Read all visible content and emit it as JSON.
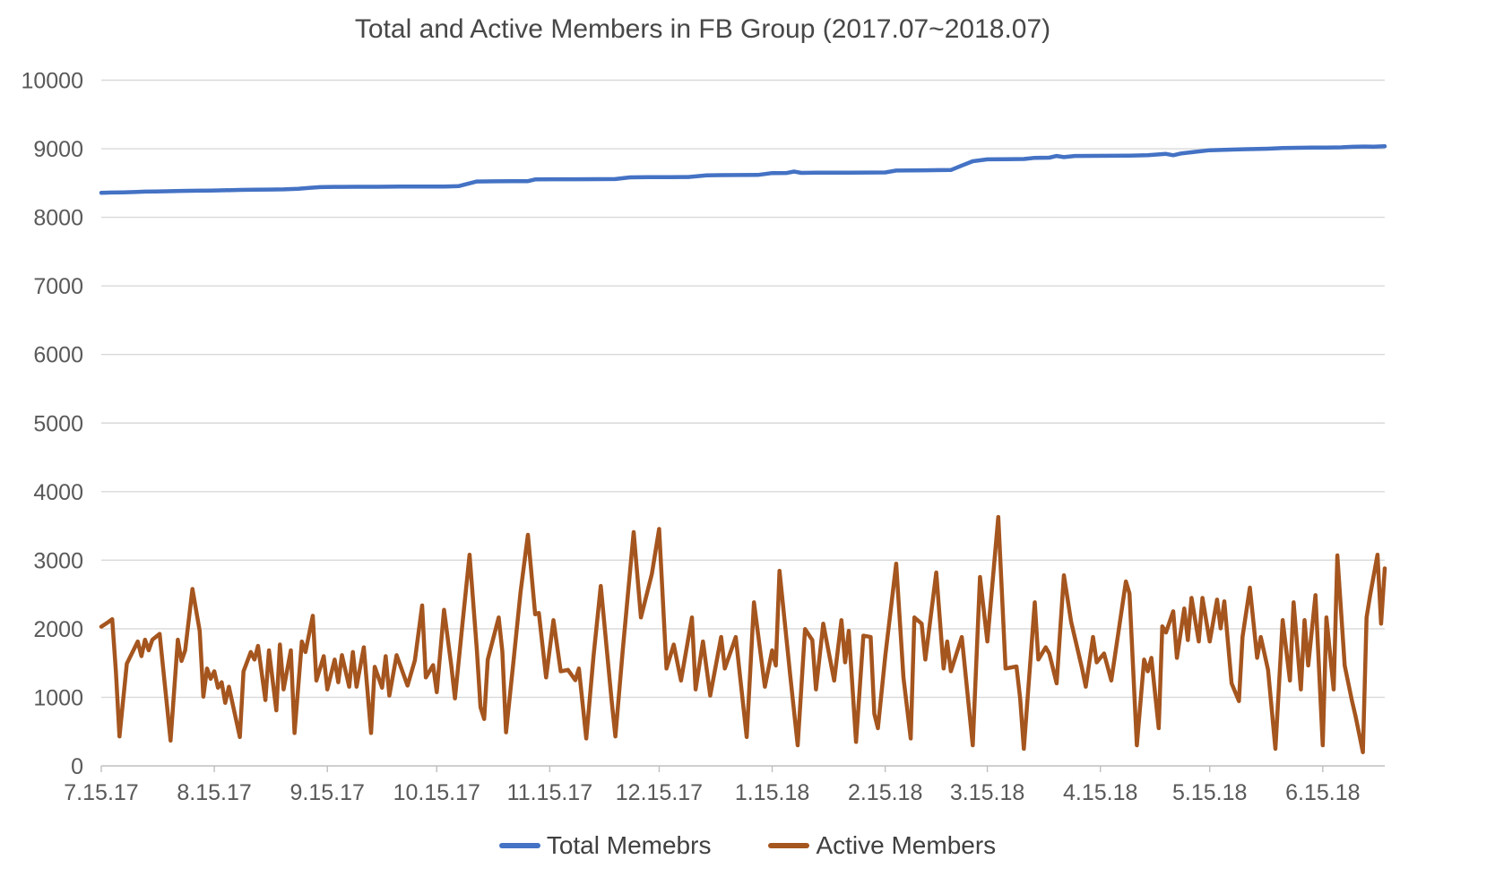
{
  "chart_data": {
    "type": "line",
    "title": "Total and Active Members in FB Group (2017.07~2018.07)",
    "xlabel": "",
    "ylabel": "",
    "grid": true,
    "legend_position": "bottom",
    "y_axis": {
      "min": 0,
      "max": 10000,
      "step": 1000,
      "tick_labels": [
        "0",
        "1000",
        "2000",
        "3000",
        "4000",
        "5000",
        "6000",
        "7000",
        "8000",
        "9000",
        "10000"
      ]
    },
    "x_axis": {
      "labels": [
        "7.15.17",
        "8.15.17",
        "9.15.17",
        "10.15.17",
        "11.15.17",
        "12.15.17",
        "1.15.18",
        "2.15.18",
        "3.15.18",
        "4.15.18",
        "5.15.18",
        "6.15.18"
      ],
      "label_days": [
        0,
        31,
        62,
        92,
        123,
        153,
        184,
        215,
        243,
        274,
        304,
        335
      ],
      "max_day": 352,
      "unit": "day"
    },
    "series": [
      {
        "name": "Total Memebrs",
        "color": "#4472C4",
        "data": [
          [
            0,
            8358
          ],
          [
            3,
            8362
          ],
          [
            6,
            8364
          ],
          [
            9,
            8368
          ],
          [
            12,
            8375
          ],
          [
            15,
            8377
          ],
          [
            18,
            8380
          ],
          [
            22,
            8385
          ],
          [
            26,
            8388
          ],
          [
            30,
            8390
          ],
          [
            34,
            8395
          ],
          [
            38,
            8400
          ],
          [
            42,
            8402
          ],
          [
            46,
            8405
          ],
          [
            50,
            8408
          ],
          [
            54,
            8415
          ],
          [
            57,
            8428
          ],
          [
            60,
            8440
          ],
          [
            64,
            8444
          ],
          [
            70,
            8446
          ],
          [
            76,
            8446
          ],
          [
            82,
            8448
          ],
          [
            88,
            8448
          ],
          [
            94,
            8450
          ],
          [
            98,
            8455
          ],
          [
            100,
            8482
          ],
          [
            103,
            8522
          ],
          [
            108,
            8525
          ],
          [
            113,
            8526
          ],
          [
            117,
            8528
          ],
          [
            119,
            8552
          ],
          [
            124,
            8555
          ],
          [
            130,
            8555
          ],
          [
            136,
            8556
          ],
          [
            141,
            8558
          ],
          [
            145,
            8582
          ],
          [
            150,
            8585
          ],
          [
            156,
            8586
          ],
          [
            161,
            8588
          ],
          [
            166,
            8612
          ],
          [
            170,
            8615
          ],
          [
            175,
            8616
          ],
          [
            180,
            8618
          ],
          [
            184,
            8645
          ],
          [
            188,
            8646
          ],
          [
            190,
            8668
          ],
          [
            192,
            8648
          ],
          [
            196,
            8650
          ],
          [
            200,
            8652
          ],
          [
            205,
            8652
          ],
          [
            210,
            8653
          ],
          [
            215,
            8655
          ],
          [
            218,
            8682
          ],
          [
            222,
            8684
          ],
          [
            226,
            8686
          ],
          [
            230,
            8688
          ],
          [
            233,
            8690
          ],
          [
            236,
            8755
          ],
          [
            239,
            8818
          ],
          [
            243,
            8845
          ],
          [
            248,
            8848
          ],
          [
            253,
            8850
          ],
          [
            256,
            8868
          ],
          [
            260,
            8870
          ],
          [
            262,
            8895
          ],
          [
            264,
            8878
          ],
          [
            267,
            8895
          ],
          [
            272,
            8896
          ],
          [
            277,
            8898
          ],
          [
            282,
            8900
          ],
          [
            287,
            8905
          ],
          [
            292,
            8925
          ],
          [
            294,
            8905
          ],
          [
            296,
            8930
          ],
          [
            300,
            8955
          ],
          [
            304,
            8978
          ],
          [
            308,
            8985
          ],
          [
            312,
            8990
          ],
          [
            316,
            8996
          ],
          [
            320,
            9000
          ],
          [
            324,
            9010
          ],
          [
            328,
            9014
          ],
          [
            332,
            9016
          ],
          [
            336,
            9018
          ],
          [
            340,
            9020
          ],
          [
            343,
            9028
          ],
          [
            346,
            9032
          ],
          [
            349,
            9030
          ],
          [
            352,
            9036
          ]
        ]
      },
      {
        "name": "Active Members",
        "color": "#A5551E",
        "data": [
          [
            0,
            2030
          ],
          [
            2,
            2100
          ],
          [
            3,
            2140
          ],
          [
            4,
            1380
          ],
          [
            5,
            430
          ],
          [
            7,
            1490
          ],
          [
            10,
            1815
          ],
          [
            11,
            1600
          ],
          [
            12,
            1840
          ],
          [
            13,
            1685
          ],
          [
            14,
            1840
          ],
          [
            16,
            1925
          ],
          [
            19,
            370
          ],
          [
            21,
            1840
          ],
          [
            22,
            1530
          ],
          [
            23,
            1685
          ],
          [
            25,
            2580
          ],
          [
            27,
            1970
          ],
          [
            28,
            1010
          ],
          [
            29,
            1420
          ],
          [
            30,
            1270
          ],
          [
            31,
            1380
          ],
          [
            32,
            1140
          ],
          [
            33,
            1220
          ],
          [
            34,
            920
          ],
          [
            35,
            1155
          ],
          [
            38,
            420
          ],
          [
            39,
            1380
          ],
          [
            41,
            1660
          ],
          [
            42,
            1550
          ],
          [
            43,
            1750
          ],
          [
            45,
            960
          ],
          [
            46,
            1685
          ],
          [
            48,
            810
          ],
          [
            49,
            1770
          ],
          [
            50,
            1115
          ],
          [
            52,
            1685
          ],
          [
            53,
            480
          ],
          [
            55,
            1815
          ],
          [
            56,
            1660
          ],
          [
            58,
            2190
          ],
          [
            59,
            1245
          ],
          [
            61,
            1600
          ],
          [
            62,
            1115
          ],
          [
            64,
            1550
          ],
          [
            65,
            1220
          ],
          [
            66,
            1615
          ],
          [
            68,
            1155
          ],
          [
            69,
            1660
          ],
          [
            70,
            1155
          ],
          [
            72,
            1730
          ],
          [
            74,
            480
          ],
          [
            75,
            1445
          ],
          [
            77,
            1140
          ],
          [
            78,
            1600
          ],
          [
            79,
            1025
          ],
          [
            81,
            1615
          ],
          [
            84,
            1170
          ],
          [
            86,
            1540
          ],
          [
            88,
            2340
          ],
          [
            89,
            1290
          ],
          [
            91,
            1470
          ],
          [
            92,
            1075
          ],
          [
            94,
            2275
          ],
          [
            96,
            1465
          ],
          [
            97,
            985
          ],
          [
            99,
            2050
          ],
          [
            101,
            3080
          ],
          [
            103,
            1700
          ],
          [
            104,
            855
          ],
          [
            105,
            685
          ],
          [
            106,
            1550
          ],
          [
            109,
            2165
          ],
          [
            110,
            1665
          ],
          [
            111,
            490
          ],
          [
            113,
            1500
          ],
          [
            115,
            2535
          ],
          [
            117,
            3370
          ],
          [
            119,
            2210
          ],
          [
            120,
            2230
          ],
          [
            122,
            1290
          ],
          [
            124,
            2125
          ],
          [
            126,
            1380
          ],
          [
            128,
            1400
          ],
          [
            130,
            1250
          ],
          [
            131,
            1420
          ],
          [
            133,
            400
          ],
          [
            135,
            1600
          ],
          [
            137,
            2625
          ],
          [
            140,
            940
          ],
          [
            141,
            430
          ],
          [
            143,
            1685
          ],
          [
            146,
            3410
          ],
          [
            148,
            2165
          ],
          [
            151,
            2800
          ],
          [
            153,
            3455
          ],
          [
            155,
            1420
          ],
          [
            157,
            1770
          ],
          [
            159,
            1245
          ],
          [
            162,
            2165
          ],
          [
            163,
            1115
          ],
          [
            165,
            1815
          ],
          [
            167,
            1025
          ],
          [
            170,
            1880
          ],
          [
            171,
            1420
          ],
          [
            174,
            1880
          ],
          [
            177,
            420
          ],
          [
            179,
            2385
          ],
          [
            182,
            1155
          ],
          [
            184,
            1685
          ],
          [
            185,
            1465
          ],
          [
            186,
            2845
          ],
          [
            189,
            1290
          ],
          [
            191,
            300
          ],
          [
            193,
            1995
          ],
          [
            195,
            1835
          ],
          [
            196,
            1115
          ],
          [
            198,
            2075
          ],
          [
            201,
            1245
          ],
          [
            203,
            2125
          ],
          [
            204,
            1510
          ],
          [
            205,
            1970
          ],
          [
            207,
            350
          ],
          [
            209,
            1900
          ],
          [
            211,
            1880
          ],
          [
            212,
            760
          ],
          [
            213,
            550
          ],
          [
            215,
            1600
          ],
          [
            218,
            2950
          ],
          [
            220,
            1290
          ],
          [
            222,
            400
          ],
          [
            223,
            2165
          ],
          [
            225,
            2075
          ],
          [
            226,
            1550
          ],
          [
            229,
            2820
          ],
          [
            231,
            1420
          ],
          [
            232,
            1815
          ],
          [
            233,
            1380
          ],
          [
            236,
            1880
          ],
          [
            239,
            300
          ],
          [
            241,
            2755
          ],
          [
            243,
            1815
          ],
          [
            246,
            3630
          ],
          [
            248,
            1420
          ],
          [
            251,
            1450
          ],
          [
            252,
            985
          ],
          [
            253,
            250
          ],
          [
            256,
            2385
          ],
          [
            257,
            1550
          ],
          [
            259,
            1730
          ],
          [
            260,
            1640
          ],
          [
            262,
            1205
          ],
          [
            264,
            2780
          ],
          [
            266,
            2100
          ],
          [
            269,
            1420
          ],
          [
            270,
            1155
          ],
          [
            272,
            1880
          ],
          [
            273,
            1510
          ],
          [
            275,
            1640
          ],
          [
            277,
            1245
          ],
          [
            281,
            2690
          ],
          [
            282,
            2515
          ],
          [
            284,
            300
          ],
          [
            286,
            1550
          ],
          [
            287,
            1380
          ],
          [
            288,
            1575
          ],
          [
            290,
            550
          ],
          [
            291,
            2035
          ],
          [
            292,
            1945
          ],
          [
            294,
            2255
          ],
          [
            295,
            1575
          ],
          [
            297,
            2295
          ],
          [
            298,
            1835
          ],
          [
            299,
            2450
          ],
          [
            301,
            1815
          ],
          [
            302,
            2450
          ],
          [
            304,
            1815
          ],
          [
            306,
            2425
          ],
          [
            307,
            2005
          ],
          [
            308,
            2400
          ],
          [
            310,
            1205
          ],
          [
            312,
            945
          ],
          [
            313,
            1880
          ],
          [
            315,
            2600
          ],
          [
            317,
            1575
          ],
          [
            318,
            1880
          ],
          [
            320,
            1400
          ],
          [
            322,
            250
          ],
          [
            324,
            2125
          ],
          [
            326,
            1245
          ],
          [
            327,
            2385
          ],
          [
            329,
            1115
          ],
          [
            330,
            2125
          ],
          [
            331,
            1465
          ],
          [
            333,
            2490
          ],
          [
            335,
            300
          ],
          [
            336,
            2165
          ],
          [
            338,
            1115
          ],
          [
            339,
            3070
          ],
          [
            341,
            1465
          ],
          [
            343,
            950
          ],
          [
            344,
            720
          ],
          [
            346,
            200
          ],
          [
            347,
            2165
          ],
          [
            348,
            2490
          ],
          [
            350,
            3080
          ],
          [
            351,
            2075
          ],
          [
            352,
            2880
          ]
        ]
      }
    ],
    "style": {
      "gridline_color": "#D9D9D9",
      "axis_color": "#BFBFBF",
      "tick_label_color": "#595959",
      "title_color": "#474747",
      "legend_text_color": "#404040"
    }
  }
}
